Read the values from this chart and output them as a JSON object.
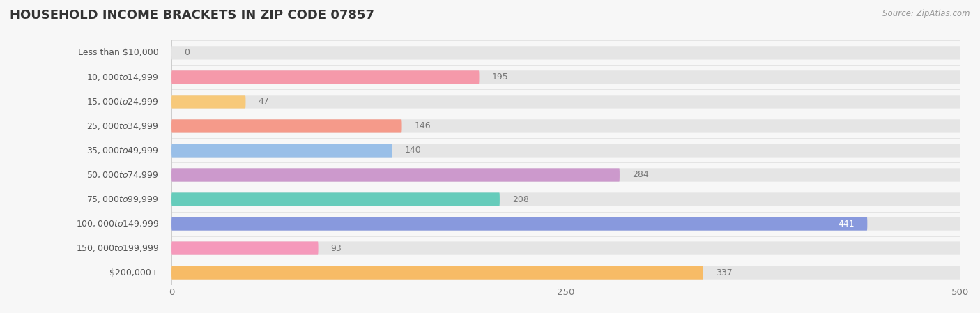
{
  "title": "HOUSEHOLD INCOME BRACKETS IN ZIP CODE 07857",
  "source": "Source: ZipAtlas.com",
  "categories": [
    "Less than $10,000",
    "$10,000 to $14,999",
    "$15,000 to $24,999",
    "$25,000 to $34,999",
    "$35,000 to $49,999",
    "$50,000 to $74,999",
    "$75,000 to $99,999",
    "$100,000 to $149,999",
    "$150,000 to $199,999",
    "$200,000+"
  ],
  "values": [
    0,
    195,
    47,
    146,
    140,
    284,
    208,
    441,
    93,
    337
  ],
  "bar_colors": [
    "#aaaadd",
    "#f599aa",
    "#f7c97a",
    "#f59a8a",
    "#99bfe8",
    "#cc99cc",
    "#66ccbb",
    "#8899dd",
    "#f599bb",
    "#f7bb66"
  ],
  "background_color": "#f7f7f7",
  "bar_bg_color": "#e5e5e5",
  "xlim": [
    0,
    500
  ],
  "xticks": [
    0,
    250,
    500
  ],
  "label_color_inside": "#ffffff",
  "label_color_outside": "#777777",
  "title_fontsize": 13,
  "tick_fontsize": 9.5,
  "label_fontsize": 9,
  "category_fontsize": 9
}
